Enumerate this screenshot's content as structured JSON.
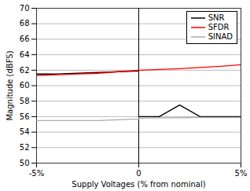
{
  "chart_data": {
    "type": "line",
    "xlabel": "Supply Voltages (% from nominal)",
    "ylabel": "Magnitude (dBFS)",
    "xlim": [
      -5,
      5
    ],
    "ylim": [
      50,
      70
    ],
    "xticks": [
      {
        "value": -5,
        "label": "-5%"
      },
      0,
      {
        "value": 5,
        "label": "5%"
      }
    ],
    "yticks": [
      50,
      52,
      54,
      56,
      58,
      60,
      62,
      64,
      66,
      68,
      70
    ],
    "series": [
      {
        "name": "SNR",
        "color": "#000000",
        "x": [
          -5,
          -4,
          -3,
          -2,
          -1,
          0,
          null,
          0,
          1,
          2,
          3,
          4,
          5
        ],
        "values": [
          61.5,
          61.5,
          61.6,
          61.7,
          61.8,
          61.9,
          null,
          56.0,
          56.0,
          57.5,
          56.0,
          56.0,
          56.0
        ]
      },
      {
        "name": "SFDR",
        "color": "#ff0000",
        "x": [
          -5,
          -4,
          -3,
          -2,
          -1,
          0,
          1,
          2,
          3,
          4,
          5
        ],
        "values": [
          61.3,
          61.4,
          61.5,
          61.6,
          61.8,
          62.0,
          62.1,
          62.2,
          62.35,
          62.5,
          62.7
        ]
      },
      {
        "name": "SINAD",
        "color": "#aaaaaa",
        "x": [
          -5,
          -4,
          -3,
          -2,
          -1,
          0,
          null,
          0,
          1,
          2,
          3,
          4,
          5
        ],
        "values": [
          55.5,
          55.5,
          55.5,
          55.5,
          55.6,
          55.7,
          null,
          55.8,
          55.85,
          55.85,
          55.9,
          55.9,
          55.9
        ]
      }
    ],
    "vline": 0,
    "grid": "y",
    "legend": "upper right"
  }
}
